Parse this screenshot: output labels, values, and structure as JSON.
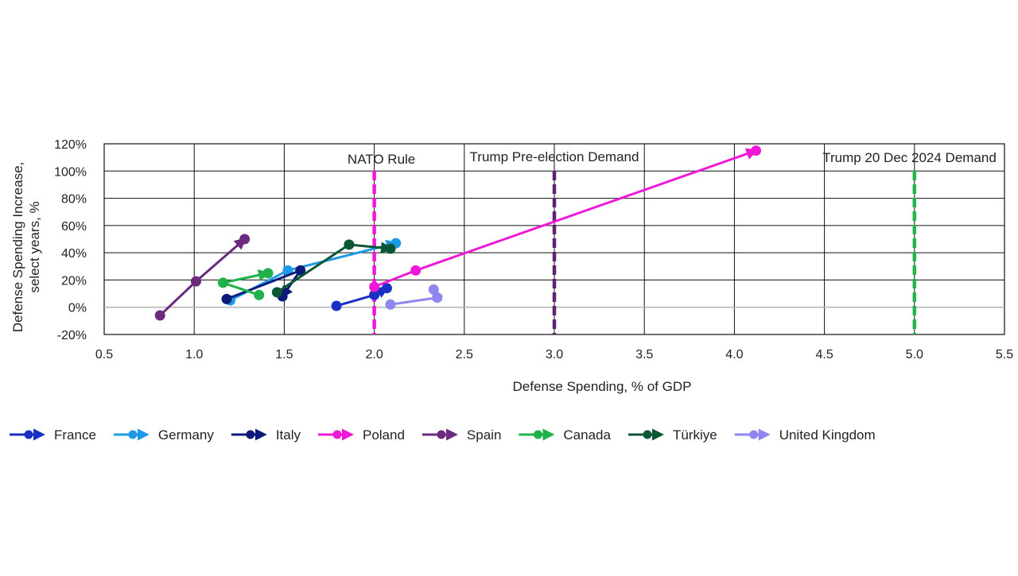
{
  "chart_data": {
    "type": "scatter",
    "xlabel": "Defense Spending, % of GDP",
    "ylabel": "Defense Spending Increase, select years, %",
    "xlim": [
      0.5,
      5.5
    ],
    "ylim": [
      -20,
      120
    ],
    "x_ticks": [
      "0.5",
      "1.0",
      "1.5",
      "2.0",
      "2.5",
      "3.0",
      "3.5",
      "4.0",
      "4.5",
      "5.0",
      "5.5"
    ],
    "y_ticks": [
      "-20%",
      "0%",
      "20%",
      "40%",
      "60%",
      "80%",
      "100%",
      "120%"
    ],
    "grid": true,
    "legend_position": "bottom",
    "reference_lines": [
      {
        "label": "NATO Rule",
        "x": 2.0,
        "color": "#f018d8"
      },
      {
        "label": "Trump Pre-election Demand",
        "x": 3.0,
        "color": "#5e2270"
      },
      {
        "label": "Trump 20 Dec 2024 Demand",
        "x": 5.0,
        "color": "#22b34c"
      }
    ],
    "series": [
      {
        "name": "France",
        "color": "#1a2fc4",
        "points": [
          [
            1.79,
            1
          ],
          [
            2.0,
            9
          ],
          [
            2.07,
            14
          ]
        ]
      },
      {
        "name": "Germany",
        "color": "#1e9be6",
        "points": [
          [
            1.2,
            5
          ],
          [
            1.52,
            27
          ],
          [
            2.12,
            47
          ]
        ]
      },
      {
        "name": "Italy",
        "color": "#0c1a7a",
        "points": [
          [
            1.18,
            6
          ],
          [
            1.59,
            27
          ],
          [
            1.49,
            8
          ]
        ]
      },
      {
        "name": "Poland",
        "color": "#f018d8",
        "points": [
          [
            2.0,
            15
          ],
          [
            2.23,
            27
          ],
          [
            4.12,
            115
          ]
        ]
      },
      {
        "name": "Spain",
        "color": "#6b2a7e",
        "points": [
          [
            0.81,
            -6
          ],
          [
            1.01,
            19
          ],
          [
            1.28,
            50
          ]
        ]
      },
      {
        "name": "Canada",
        "color": "#1fb14a",
        "points": [
          [
            1.36,
            9
          ],
          [
            1.16,
            18
          ],
          [
            1.41,
            25
          ]
        ]
      },
      {
        "name": "Türkiye",
        "color": "#0b5734",
        "points": [
          [
            1.46,
            11
          ],
          [
            1.86,
            46
          ],
          [
            2.09,
            43
          ]
        ]
      },
      {
        "name": "United Kingdom",
        "color": "#8f86ef",
        "points": [
          [
            2.09,
            2
          ],
          [
            2.35,
            7
          ],
          [
            2.33,
            13
          ]
        ]
      }
    ]
  }
}
